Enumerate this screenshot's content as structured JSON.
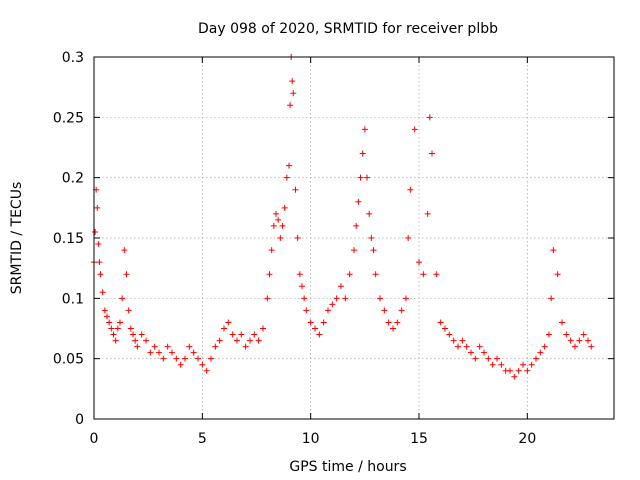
{
  "chart_data": {
    "type": "scatter",
    "title": "Day 098 of 2020, SRMTID for receiver plbb",
    "xlabel": "GPS time / hours",
    "ylabel": "SRMTID / TECUs",
    "xlim": [
      0,
      24
    ],
    "ylim": [
      0,
      0.3
    ],
    "x_ticks": [
      0,
      5,
      10,
      15,
      20
    ],
    "x_tick_labels": [
      "0",
      "5",
      "10",
      "15",
      "20"
    ],
    "y_ticks": [
      0,
      0.05,
      0.1,
      0.15,
      0.2,
      0.25,
      0.3
    ],
    "y_tick_labels": [
      "0",
      "0.05",
      "0.1",
      "0.15",
      "0.2",
      "0.25",
      "0.3"
    ],
    "grid": true,
    "marker": "+",
    "color": "#ff0000",
    "series": [
      {
        "name": "SRMTID",
        "x": [
          0.0,
          0.05,
          0.1,
          0.15,
          0.2,
          0.25,
          0.3,
          0.4,
          0.5,
          0.6,
          0.7,
          0.8,
          0.9,
          1.0,
          1.1,
          1.2,
          1.3,
          1.4,
          1.5,
          1.6,
          1.7,
          1.8,
          1.9,
          2.0,
          2.2,
          2.4,
          2.6,
          2.8,
          3.0,
          3.2,
          3.4,
          3.6,
          3.8,
          4.0,
          4.2,
          4.4,
          4.6,
          4.8,
          5.0,
          5.2,
          5.4,
          5.6,
          5.8,
          6.0,
          6.2,
          6.4,
          6.6,
          6.8,
          7.0,
          7.2,
          7.4,
          7.6,
          7.8,
          8.0,
          8.1,
          8.2,
          8.3,
          8.4,
          8.5,
          8.6,
          8.7,
          8.8,
          8.9,
          9.0,
          9.05,
          9.1,
          9.15,
          9.2,
          9.3,
          9.4,
          9.5,
          9.6,
          9.7,
          9.8,
          10.0,
          10.2,
          10.4,
          10.6,
          10.8,
          11.0,
          11.2,
          11.4,
          11.6,
          11.8,
          12.0,
          12.1,
          12.2,
          12.3,
          12.4,
          12.5,
          12.6,
          12.7,
          12.8,
          12.9,
          13.0,
          13.2,
          13.4,
          13.6,
          13.8,
          14.0,
          14.2,
          14.4,
          14.5,
          14.6,
          14.8,
          15.0,
          15.2,
          15.4,
          15.5,
          15.6,
          15.8,
          16.0,
          16.2,
          16.4,
          16.6,
          16.8,
          17.0,
          17.2,
          17.4,
          17.6,
          17.8,
          18.0,
          18.2,
          18.4,
          18.6,
          18.8,
          19.0,
          19.2,
          19.4,
          19.6,
          19.8,
          20.0,
          20.2,
          20.4,
          20.6,
          20.8,
          21.0,
          21.1,
          21.2,
          21.4,
          21.6,
          21.8,
          22.0,
          22.2,
          22.4,
          22.6,
          22.8,
          22.95
        ],
        "y": [
          0.13,
          0.155,
          0.19,
          0.175,
          0.145,
          0.13,
          0.12,
          0.105,
          0.09,
          0.085,
          0.08,
          0.075,
          0.07,
          0.065,
          0.075,
          0.08,
          0.1,
          0.14,
          0.12,
          0.09,
          0.075,
          0.07,
          0.065,
          0.06,
          0.07,
          0.065,
          0.055,
          0.06,
          0.055,
          0.05,
          0.06,
          0.055,
          0.05,
          0.045,
          0.05,
          0.06,
          0.055,
          0.05,
          0.045,
          0.04,
          0.05,
          0.06,
          0.065,
          0.075,
          0.08,
          0.07,
          0.065,
          0.07,
          0.06,
          0.065,
          0.07,
          0.065,
          0.075,
          0.1,
          0.12,
          0.14,
          0.16,
          0.17,
          0.165,
          0.15,
          0.16,
          0.175,
          0.2,
          0.21,
          0.26,
          0.3,
          0.28,
          0.27,
          0.19,
          0.15,
          0.12,
          0.11,
          0.1,
          0.09,
          0.08,
          0.075,
          0.07,
          0.08,
          0.09,
          0.095,
          0.1,
          0.11,
          0.1,
          0.12,
          0.14,
          0.16,
          0.18,
          0.2,
          0.22,
          0.24,
          0.2,
          0.17,
          0.15,
          0.14,
          0.12,
          0.1,
          0.09,
          0.08,
          0.075,
          0.08,
          0.09,
          0.1,
          0.15,
          0.19,
          0.24,
          0.13,
          0.12,
          0.17,
          0.25,
          0.22,
          0.12,
          0.08,
          0.075,
          0.07,
          0.065,
          0.06,
          0.065,
          0.06,
          0.055,
          0.05,
          0.06,
          0.055,
          0.05,
          0.045,
          0.05,
          0.045,
          0.04,
          0.04,
          0.035,
          0.04,
          0.045,
          0.04,
          0.045,
          0.05,
          0.055,
          0.06,
          0.07,
          0.1,
          0.14,
          0.12,
          0.08,
          0.07,
          0.065,
          0.06,
          0.065,
          0.07,
          0.065,
          0.06
        ]
      }
    ]
  }
}
